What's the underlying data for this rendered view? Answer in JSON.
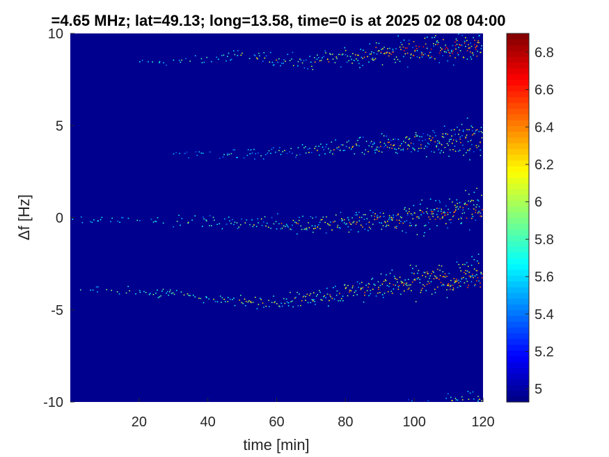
{
  "chart_data": {
    "type": "heatmap",
    "title": "=4.65 MHz;  lat=49.13; long=13.58, time=0 is at 2025 02 08 04:00",
    "xlabel": "time [min]",
    "ylabel": "Δf [Hz]",
    "xlim": [
      0,
      120
    ],
    "ylim": [
      -10,
      10
    ],
    "x_ticks": [
      20,
      40,
      60,
      80,
      100,
      120
    ],
    "y_ticks": [
      10,
      5,
      0,
      -5,
      -10
    ],
    "colorbar": {
      "colormap": "jet",
      "range": [
        4.93,
        6.9
      ],
      "ticks": [
        6.8,
        6.6,
        6.4,
        6.2,
        6,
        5.8,
        5.6,
        5.4,
        5.2,
        5
      ]
    },
    "background_value": 4.95,
    "traces": [
      {
        "y_at_time": [
          [
            20,
            8.4
          ],
          [
            40,
            8.6
          ],
          [
            50,
            8.9
          ],
          [
            60,
            8.6
          ],
          [
            70,
            8.4
          ],
          [
            80,
            8.8
          ],
          [
            90,
            9.0
          ],
          [
            100,
            9.1
          ],
          [
            110,
            9.2
          ],
          [
            120,
            9.3
          ]
        ],
        "peak": [
          5.4,
          6.6
        ]
      },
      {
        "y_at_time": [
          [
            30,
            3.5
          ],
          [
            50,
            3.5
          ],
          [
            60,
            3.6
          ],
          [
            80,
            3.8
          ],
          [
            90,
            3.9
          ],
          [
            100,
            4.1
          ],
          [
            110,
            4.2
          ],
          [
            120,
            4.3
          ]
        ],
        "peak": [
          5.3,
          6.4
        ]
      },
      {
        "y_at_time": [
          [
            0,
            0.0
          ],
          [
            20,
            -0.1
          ],
          [
            40,
            -0.2
          ],
          [
            60,
            -0.3
          ],
          [
            70,
            -0.3
          ],
          [
            80,
            -0.2
          ],
          [
            90,
            -0.1
          ],
          [
            100,
            0.0
          ],
          [
            110,
            0.3
          ],
          [
            120,
            0.5
          ]
        ],
        "peak": [
          5.4,
          6.5
        ]
      },
      {
        "y_at_time": [
          [
            0,
            -3.9
          ],
          [
            10,
            -3.9
          ],
          [
            20,
            -4.0
          ],
          [
            30,
            -4.1
          ],
          [
            40,
            -4.3
          ],
          [
            50,
            -4.5
          ],
          [
            60,
            -4.5
          ],
          [
            70,
            -4.3
          ],
          [
            80,
            -4.0
          ],
          [
            90,
            -3.7
          ],
          [
            100,
            -3.5
          ],
          [
            110,
            -3.3
          ],
          [
            120,
            -3.1
          ]
        ],
        "peak": [
          5.5,
          6.5
        ]
      },
      {
        "y_at_time": [
          [
            80,
            -10.2
          ],
          [
            90,
            -10.3
          ],
          [
            100,
            -10.3
          ],
          [
            110,
            -10.2
          ],
          [
            120,
            -10.1
          ]
        ],
        "peak": [
          5.3,
          6.2
        ]
      }
    ]
  }
}
